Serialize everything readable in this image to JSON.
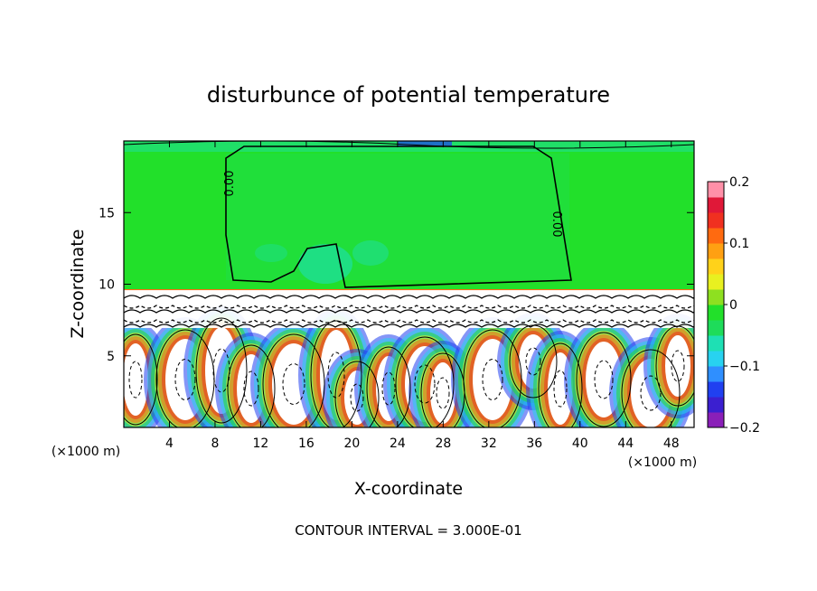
{
  "chart_data": {
    "type": "heatmap",
    "title": "disturbunce of potential temperature",
    "xlabel": "X-coordinate",
    "ylabel": "Z-coordinate",
    "x_unit_left": "(×1000 m)",
    "x_unit_right": "(×1000 m)",
    "xlim": [
      0,
      50
    ],
    "ylim": [
      0,
      20
    ],
    "x_ticks": [
      4,
      8,
      12,
      16,
      20,
      24,
      28,
      32,
      36,
      40,
      44,
      48
    ],
    "y_ticks": [
      5,
      10,
      15
    ],
    "colorbar": {
      "min": -0.2,
      "max": 0.2,
      "ticks": [
        0.2,
        0.1,
        0,
        -0.1,
        -0.2
      ],
      "tick_labels": [
        "0.2",
        "0.1",
        "0",
        "−0.1",
        "−0.2"
      ],
      "colors": [
        "#8a1fb8",
        "#3b1fd0",
        "#2040f0",
        "#2f8fff",
        "#28d2f0",
        "#1ee0b4",
        "#1edc5a",
        "#22e02a",
        "#8ee020",
        "#e8f020",
        "#ffd21a",
        "#ffa012",
        "#ff6a10",
        "#f03020",
        "#e01838",
        "#ff90a8"
      ]
    },
    "contour_labels": [
      "0.00",
      "0.00"
    ],
    "footer": "CONTOUR INTERVAL = 3.000E-01"
  }
}
